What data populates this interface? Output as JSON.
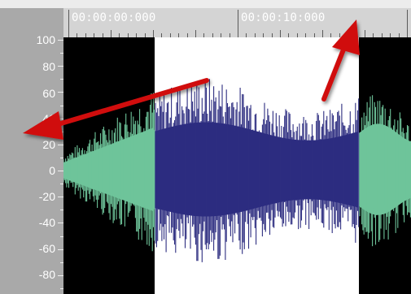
{
  "timeline": {
    "labels": [
      "00:00:00:000",
      "00:00:10:000"
    ]
  },
  "amplitude_axis": {
    "labels": [
      "100",
      "80",
      "60",
      "40",
      "20",
      "0",
      "-20",
      "-40",
      "-60",
      "-80"
    ]
  },
  "colors": {
    "selection_waveform": "#2d2d80",
    "unselected_waveform": "#6ec49a",
    "unselected_background": "#000000",
    "selection_background": "#ffffff",
    "ruler_background": "#d4d4d4",
    "axis_panel": "#a9a9a9",
    "annotation_arrow": "#d01010"
  },
  "annotations": [
    {
      "icon": "red-arrow-left-icon"
    },
    {
      "icon": "red-arrow-up-icon"
    }
  ]
}
